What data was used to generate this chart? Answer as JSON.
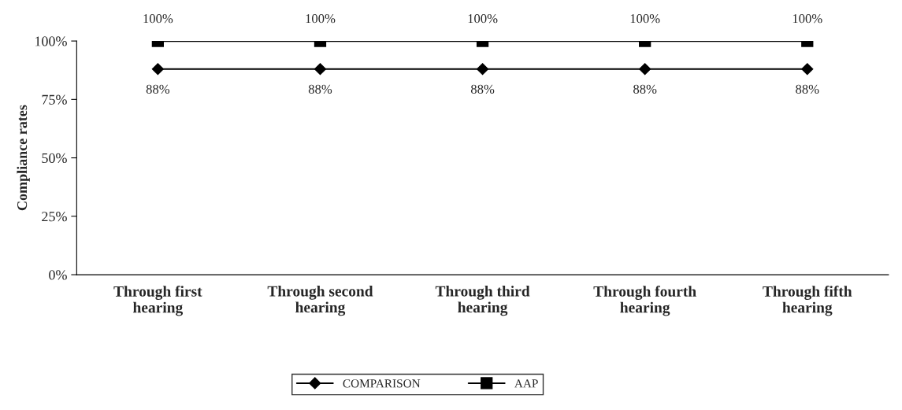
{
  "chart_data": {
    "type": "line",
    "ylabel": "Compliance rates",
    "categories": [
      "Through first\nhearing",
      "Through second\nhearing",
      "Through third\nhearing",
      "Through fourth\nhearing",
      "Through fifth\nhearing"
    ],
    "series": [
      {
        "name": "COMPARISON",
        "color": "#000000",
        "marker": "diamond",
        "values": [
          88,
          88,
          88,
          88,
          88
        ],
        "value_labels": [
          "88%",
          "88%",
          "88%",
          "88%",
          "88%"
        ]
      },
      {
        "name": "AAP",
        "color": "#000000",
        "marker": "square",
        "values": [
          100,
          100,
          100,
          100,
          100
        ],
        "value_labels": [
          "100%",
          "100%",
          "100%",
          "100%",
          "100%"
        ]
      }
    ],
    "ylim": [
      0,
      100
    ],
    "yticks": [
      {
        "value": 0,
        "label": "0%"
      },
      {
        "value": 25,
        "label": "25%"
      },
      {
        "value": 50,
        "label": "50%"
      },
      {
        "value": 75,
        "label": "75%"
      },
      {
        "value": 100,
        "label": "100%"
      }
    ],
    "grid": false,
    "legend": "bottom",
    "line_style": "solid"
  }
}
